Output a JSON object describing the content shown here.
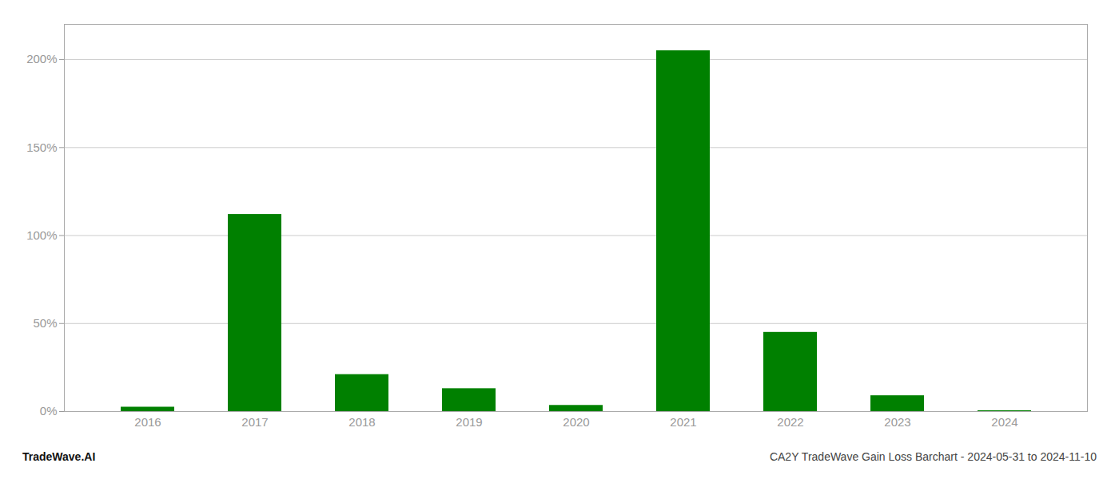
{
  "chart_data": {
    "type": "bar",
    "categories": [
      "2016",
      "2017",
      "2018",
      "2019",
      "2020",
      "2021",
      "2022",
      "2023",
      "2024"
    ],
    "values": [
      2.5,
      112.0,
      21.0,
      13.0,
      3.5,
      205.0,
      45.0,
      9.0,
      0.5
    ],
    "color": "#008000",
    "ylim": [
      0,
      220
    ],
    "yticks": [
      {
        "value": 0,
        "label": "0%"
      },
      {
        "value": 50,
        "label": "50%"
      },
      {
        "value": 100,
        "label": "100%"
      },
      {
        "value": 150,
        "label": "150%"
      },
      {
        "value": 200,
        "label": "200%"
      }
    ],
    "grid": true,
    "annotations": [
      "TradeWave.AI",
      "CA2Y TradeWave Gain Loss Barchart - 2024-05-31 to 2024-11-10"
    ]
  }
}
